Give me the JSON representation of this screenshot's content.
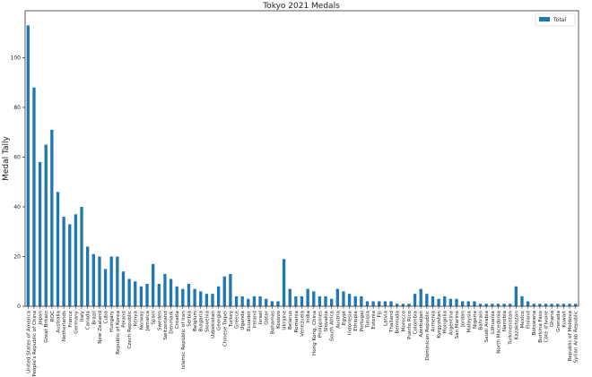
{
  "chart_data": {
    "type": "bar",
    "title": "Tokyo 2021 Medals",
    "y_label": "Medal Tally",
    "categories": [
      "United States of America",
      "People's Republic of China",
      "Japan",
      "Great Britain",
      "ROC",
      "Australia",
      "Netherlands",
      "France",
      "Germany",
      "Italy",
      "Canada",
      "Brazil",
      "New Zealand",
      "Cuba",
      "Hungary",
      "Republic of Korea",
      "Poland",
      "Czech Republic",
      "Kenya",
      "Norway",
      "Jamaica",
      "Spain",
      "Sweden",
      "Switzerland",
      "Denmark",
      "Croatia",
      "Islamic Republic of Iran",
      "Serbia",
      "Belgium",
      "Bulgaria",
      "Slovenia",
      "Uzbekistan",
      "Georgia",
      "Chinese Taipei",
      "Turkey",
      "Greece",
      "Uganda",
      "Ecuador",
      "Ireland",
      "Israel",
      "Qatar",
      "Bahamas",
      "Kosovo",
      "Ukraine",
      "Belarus",
      "Romania",
      "Venezuela",
      "India",
      "Hong Kong, China",
      "Philippines",
      "Slovakia",
      "South Africa",
      "Austria",
      "Egypt",
      "Indonesia",
      "Ethiopia",
      "Portugal",
      "Tunisia",
      "Estonia",
      "Fiji",
      "Latvia",
      "Thailand",
      "Bermuda",
      "Morocco",
      "Puerto Rico",
      "Colombia",
      "Azerbaijan",
      "Dominican Republic",
      "Armenia",
      "Kyrgyzstan",
      "Mongolia",
      "Argentina",
      "San Marino",
      "Jordan",
      "Malaysia",
      "Nigeria",
      "Bahrain",
      "Saudi Arabia",
      "Lithuania",
      "North Macedonia",
      "Namibia",
      "Turkmenistan",
      "Kazakhstan",
      "Mexico",
      "Finland",
      "Botswana",
      "Burkina Faso",
      "Côte d'Ivoire",
      "Ghana",
      "Grenada",
      "Kuwait",
      "Republic of Moldova",
      "Syrian Arab Republic"
    ],
    "series": [
      {
        "name": "Total",
        "color": "#1f77b4",
        "values": [
          113,
          88,
          58,
          65,
          71,
          46,
          36,
          33,
          37,
          40,
          24,
          21,
          20,
          15,
          20,
          20,
          14,
          11,
          10,
          8,
          9,
          17,
          9,
          13,
          11,
          8,
          7,
          9,
          7,
          6,
          5,
          5,
          8,
          12,
          13,
          4,
          4,
          3,
          4,
          4,
          3,
          2,
          2,
          19,
          7,
          4,
          4,
          7,
          6,
          4,
          4,
          3,
          7,
          6,
          5,
          4,
          4,
          2,
          2,
          2,
          2,
          2,
          1,
          1,
          1,
          5,
          7,
          5,
          4,
          3,
          4,
          3,
          3,
          2,
          2,
          2,
          1,
          1,
          1,
          1,
          1,
          1,
          8,
          4,
          2,
          1,
          1,
          1,
          1,
          1,
          1,
          1,
          1
        ]
      }
    ],
    "ylim": [
      0,
      118.9
    ],
    "yticks": [
      0,
      20,
      40,
      60,
      80,
      100
    ],
    "legend": "upper right"
  }
}
